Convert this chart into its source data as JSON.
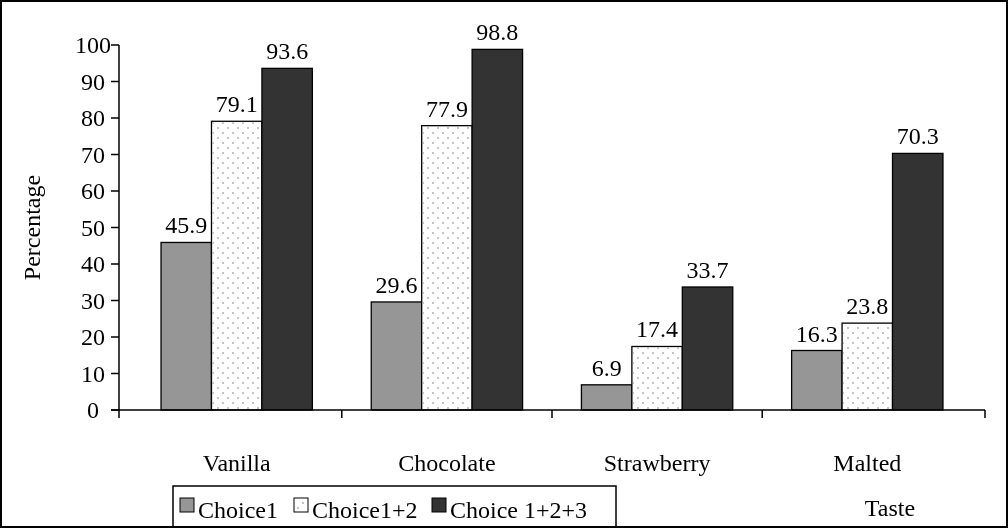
{
  "chart_data": {
    "type": "bar",
    "xlabel": "Taste",
    "ylabel": "Percentage",
    "categories": [
      "Vanilla",
      "Chocolate",
      "Strawberry",
      "Malted"
    ],
    "series": [
      {
        "name": "Choice1",
        "color": "#969696",
        "values": [
          45.9,
          29.6,
          6.9,
          16.3
        ]
      },
      {
        "name": "Choice1+2",
        "color": "#ffffff",
        "values": [
          79.1,
          77.9,
          17.4,
          23.8
        ]
      },
      {
        "name": "Choice 1+2+3",
        "color": "#333333",
        "values": [
          93.6,
          98.8,
          33.7,
          70.3
        ]
      }
    ],
    "ylim": [
      0,
      100
    ],
    "yticks": [
      0,
      10,
      20,
      30,
      40,
      50,
      60,
      70,
      80,
      90,
      100
    ],
    "data_labels": true,
    "legend": "bottom"
  }
}
